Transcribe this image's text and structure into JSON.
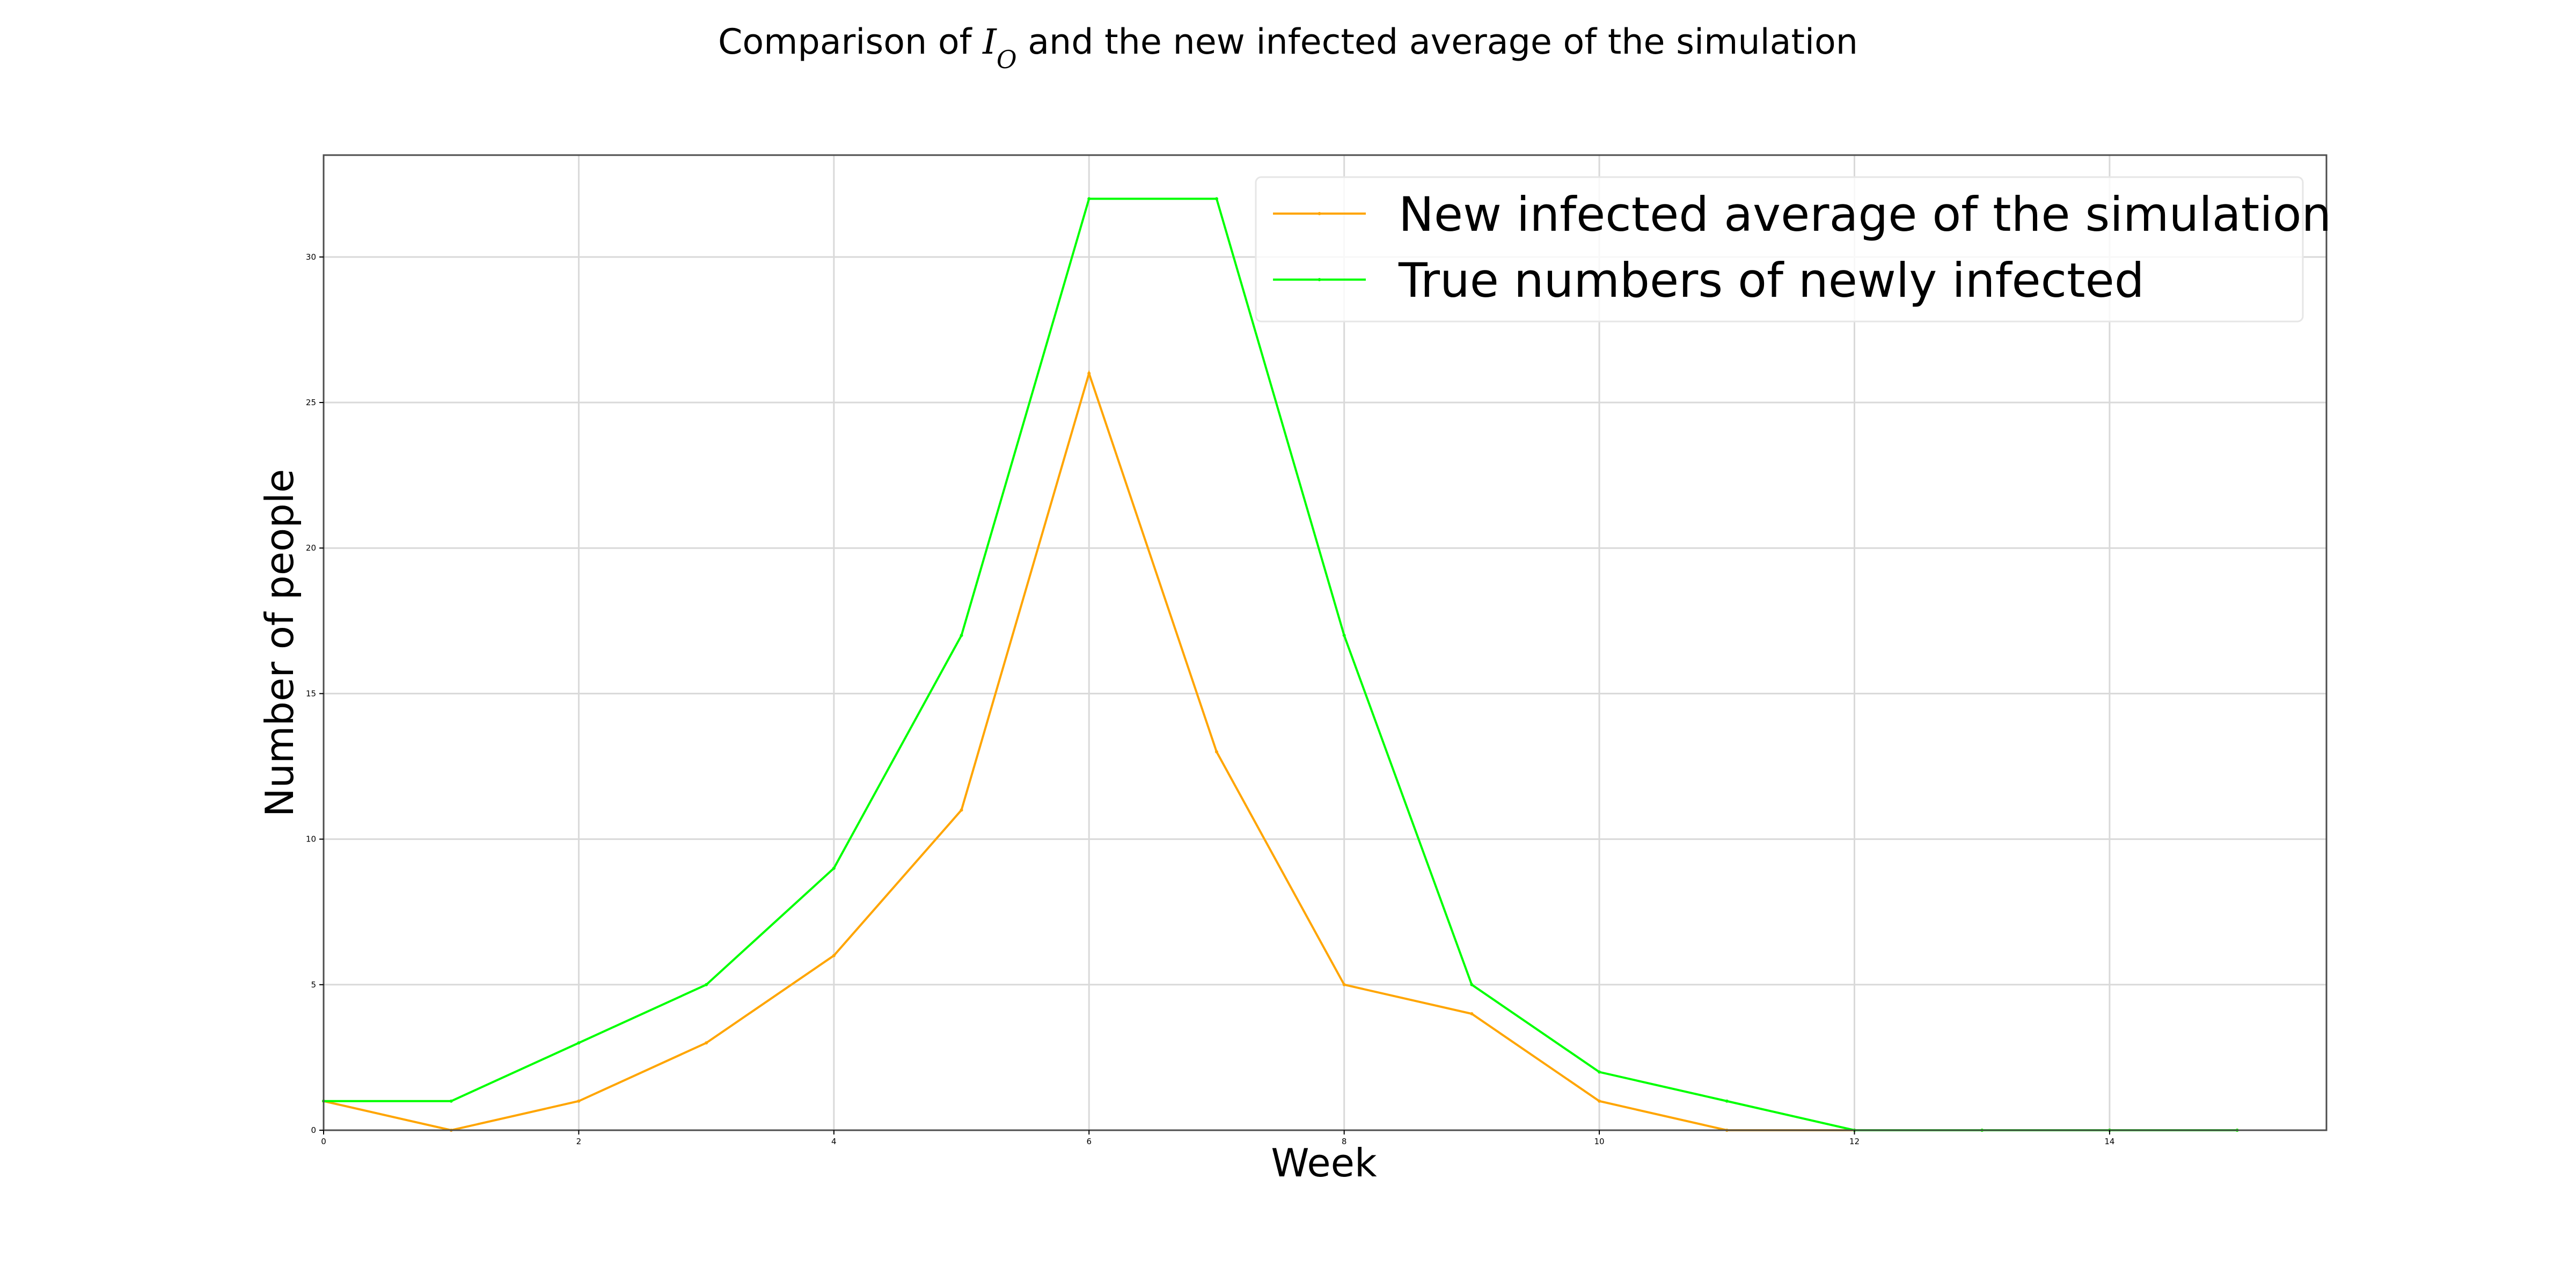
{
  "chart_data": {
    "type": "line",
    "title": {
      "prefix": "Comparison of ",
      "math_symbol": "I",
      "math_subscript": "O",
      "suffix": " and the new infected average of the simulation"
    },
    "xlabel": "Week",
    "ylabel": "Number of people",
    "x": [
      0,
      1,
      2,
      3,
      4,
      5,
      6,
      7,
      8,
      9,
      10,
      11,
      12,
      13,
      14,
      15
    ],
    "xlim": [
      0,
      15.7
    ],
    "ylim": [
      0,
      33.5
    ],
    "xticks": [
      0,
      2,
      4,
      6,
      8,
      10,
      12,
      14
    ],
    "yticks": [
      0,
      5,
      10,
      15,
      20,
      25,
      30
    ],
    "grid": true,
    "legend_position": "top-right",
    "series": [
      {
        "name": "New infected average of the simulation",
        "color": "#FFA500",
        "values": [
          1,
          0,
          1,
          3,
          6,
          11,
          26,
          13,
          5,
          4,
          1,
          0,
          0,
          0,
          0,
          0
        ]
      },
      {
        "name": "True numbers of newly infected",
        "color": "#00FF00",
        "values": [
          1,
          1,
          3,
          5,
          9,
          17,
          32,
          32,
          17,
          5,
          2,
          1,
          0,
          0,
          0,
          0
        ]
      }
    ]
  }
}
